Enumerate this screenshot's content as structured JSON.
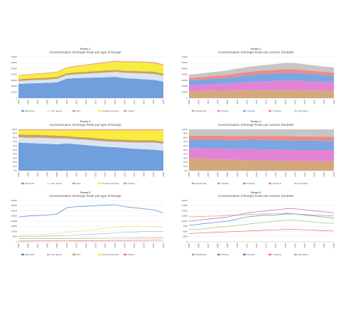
{
  "chart_data": [
    {
      "type": "area",
      "label": "Forme 1",
      "title": "Consommation d'énergie finale par type d'énergie",
      "categories": [
        "2005",
        "2006",
        "2007",
        "2008",
        "2009",
        "2010",
        "2011",
        "2012",
        "2013",
        "2014",
        "2015",
        "2016",
        "2017",
        "2018",
        "2019",
        "2020"
      ],
      "ylim": [
        0,
        70000
      ],
      "yticks": [
        0,
        10000,
        20000,
        30000,
        40000,
        50000,
        60000,
        70000
      ],
      "grid": true,
      "series": [
        {
          "name": "Électricité",
          "color": "#6f9fdc",
          "values": [
            24000,
            25000,
            25500,
            26000,
            27000,
            33000,
            34000,
            34500,
            35000,
            35500,
            36000,
            34000,
            33000,
            32000,
            31000,
            28000
          ]
        },
        {
          "name": "Gaz naturel",
          "color": "#dbe4f3",
          "values": [
            5000,
            5200,
            5400,
            5600,
            5800,
            6000,
            6500,
            7000,
            7500,
            8000,
            8500,
            9000,
            9500,
            10000,
            10200,
            10000
          ]
        },
        {
          "name": "Bois",
          "color": "#c9a35f",
          "values": [
            3000,
            3000,
            3100,
            3100,
            3200,
            3200,
            3300,
            3300,
            3400,
            3400,
            3500,
            3500,
            3600,
            3600,
            3700,
            3700
          ]
        },
        {
          "name": "Produits pétroliers",
          "color": "#f7ec3f",
          "values": [
            6000,
            6500,
            7000,
            7500,
            8000,
            9000,
            10000,
            11000,
            12000,
            13000,
            14000,
            14500,
            15000,
            15000,
            14500,
            14000
          ]
        },
        {
          "name": "Chaleur",
          "color": "#ee8f8f",
          "values": [
            800,
            800,
            900,
            900,
            1000,
            1000,
            1100,
            1100,
            1200,
            1200,
            1300,
            1300,
            1400,
            1400,
            1500,
            1500
          ]
        }
      ]
    },
    {
      "type": "area",
      "label": "Forme 2",
      "title": "Consommation d'énergie finale par secteur d'activité",
      "categories": [
        "2005",
        "2006",
        "2007",
        "2008",
        "2009",
        "2010",
        "2011",
        "2012",
        "2013",
        "2014",
        "2015",
        "2016",
        "2017",
        "2018",
        "2019",
        "2020"
      ],
      "ylim": [
        0,
        70000
      ],
      "yticks": [
        0,
        10000,
        20000,
        30000,
        40000,
        50000,
        60000,
        70000
      ],
      "grid": true,
      "series": [
        {
          "name": "Résidentiel",
          "color": "#d4a87a",
          "values": [
            12000,
            12200,
            12400,
            12500,
            12800,
            13000,
            13200,
            13400,
            13500,
            13600,
            13800,
            13500,
            13200,
            13000,
            12800,
            12500
          ]
        },
        {
          "name": "Tertiaire",
          "color": "#e383d6",
          "values": [
            10000,
            10500,
            11000,
            11500,
            12000,
            13000,
            14000,
            14500,
            15000,
            15500,
            16000,
            16000,
            15500,
            15000,
            14500,
            14000
          ]
        },
        {
          "name": "Industrie",
          "color": "#7aa7e2",
          "values": [
            8000,
            8500,
            9000,
            9500,
            10000,
            11000,
            12000,
            12500,
            13000,
            13000,
            13500,
            13500,
            13000,
            12500,
            12000,
            11500
          ]
        },
        {
          "name": "Transport",
          "color": "#f08a84",
          "values": [
            4000,
            4200,
            4400,
            4600,
            4800,
            5000,
            5200,
            5400,
            5600,
            5800,
            6000,
            6000,
            5800,
            5600,
            5400,
            5200
          ]
        },
        {
          "name": "Agriculture",
          "color": "#c6c6c6",
          "values": [
            6000,
            6000,
            6500,
            7000,
            7500,
            8000,
            8500,
            9000,
            9500,
            10000,
            10500,
            10500,
            10000,
            9500,
            9000,
            9000
          ]
        }
      ]
    },
    {
      "type": "area",
      "label": "Forme 3",
      "title": "Consommation d'énergie finale par type d'énergie",
      "categories": [
        "2005",
        "2006",
        "2007",
        "2008",
        "2009",
        "2010",
        "2011",
        "2012",
        "2013",
        "2014",
        "2015",
        "2016",
        "2017",
        "2018",
        "2019",
        "2020"
      ],
      "ylim": [
        0,
        100
      ],
      "yticks": [
        {
          "value": 0,
          "label": "0%"
        },
        {
          "value": 10,
          "label": "10%"
        },
        {
          "value": 20,
          "label": "20%"
        },
        {
          "value": 30,
          "label": "30%"
        },
        {
          "value": 40,
          "label": "40%"
        },
        {
          "value": 50,
          "label": "50%"
        },
        {
          "value": 60,
          "label": "60%"
        },
        {
          "value": 70,
          "label": "70%"
        },
        {
          "value": 80,
          "label": "80%"
        },
        {
          "value": 90,
          "label": "90%"
        },
        {
          "value": 100,
          "label": "100%"
        }
      ],
      "grid": true,
      "series": [
        {
          "name": "Électricité",
          "color": "#6f9fdc",
          "values": [
            68,
            67,
            66,
            65,
            64,
            66,
            64,
            62,
            60,
            58,
            57,
            55,
            53,
            52,
            51,
            48
          ]
        },
        {
          "name": "Gaz naturel",
          "color": "#dbe4f3",
          "values": [
            13,
            13,
            14,
            14,
            14,
            12,
            12,
            13,
            13,
            13,
            13,
            14,
            15,
            16,
            17,
            17
          ]
        },
        {
          "name": "Bois",
          "color": "#c9a35f",
          "values": [
            7,
            7,
            7,
            7,
            7,
            6,
            6,
            6,
            6,
            6,
            6,
            6,
            6,
            6,
            6,
            6
          ]
        },
        {
          "name": "Produits pétroliers",
          "color": "#f7ec3f",
          "values": [
            10,
            11,
            11,
            12,
            13,
            14,
            16,
            17,
            19,
            21,
            22,
            23,
            24,
            24,
            24,
            27
          ]
        },
        {
          "name": "Chaleur",
          "color": "#ee8f8f",
          "values": [
            2,
            2,
            2,
            2,
            2,
            2,
            2,
            2,
            2,
            2,
            2,
            2,
            2,
            2,
            2,
            2
          ]
        }
      ]
    },
    {
      "type": "area",
      "label": "Forme 4",
      "title": "Consommation d'énergie finale par secteur d'activité",
      "categories": [
        "2005",
        "2006",
        "2007",
        "2008",
        "2009",
        "2010",
        "2011",
        "2012",
        "2013",
        "2014",
        "2015",
        "2016",
        "2017",
        "2018",
        "2019",
        "2020"
      ],
      "ylim": [
        0,
        100
      ],
      "yticks": [
        {
          "value": 0,
          "label": "0%"
        },
        {
          "value": 10,
          "label": "10%"
        },
        {
          "value": 20,
          "label": "20%"
        },
        {
          "value": 30,
          "label": "30%"
        },
        {
          "value": 40,
          "label": "40%"
        },
        {
          "value": 50,
          "label": "50%"
        },
        {
          "value": 60,
          "label": "60%"
        },
        {
          "value": 70,
          "label": "70%"
        },
        {
          "value": 80,
          "label": "80%"
        },
        {
          "value": 90,
          "label": "90%"
        },
        {
          "value": 100,
          "label": "100%"
        }
      ],
      "grid": true,
      "series": [
        {
          "name": "Résidentiel",
          "color": "#d4a87a",
          "values": [
            30,
            30,
            29,
            28,
            27,
            26,
            25,
            25,
            24,
            24,
            24,
            23,
            23,
            23,
            23,
            23
          ]
        },
        {
          "name": "Tertiaire",
          "color": "#e383d6",
          "values": [
            25,
            25,
            25,
            26,
            26,
            26,
            27,
            27,
            27,
            27,
            27,
            27,
            27,
            27,
            27,
            27
          ]
        },
        {
          "name": "Industrie",
          "color": "#7aa7e2",
          "values": [
            20,
            20,
            21,
            21,
            21,
            22,
            23,
            23,
            23,
            23,
            23,
            23,
            23,
            23,
            22,
            22
          ]
        },
        {
          "name": "Transport",
          "color": "#f08a84",
          "values": [
            10,
            10,
            10,
            10,
            10,
            10,
            9,
            9,
            10,
            10,
            10,
            10,
            10,
            10,
            10,
            10
          ]
        },
        {
          "name": "Agriculture",
          "color": "#c6c6c6",
          "values": [
            15,
            15,
            15,
            15,
            16,
            16,
            16,
            16,
            16,
            16,
            16,
            17,
            17,
            17,
            18,
            18
          ]
        }
      ]
    },
    {
      "type": "line",
      "label": "Forme 5",
      "title": "Consommation d'énergie finale par type d'énergie",
      "categories": [
        "2005",
        "2006",
        "2007",
        "2008",
        "2009",
        "2010",
        "2011",
        "2012",
        "2013",
        "2014",
        "2015",
        "2016",
        "2017",
        "2018",
        "2019",
        "2020"
      ],
      "ylim": [
        0,
        40000
      ],
      "yticks": [
        0,
        5000,
        10000,
        15000,
        20000,
        25000,
        30000,
        35000,
        40000
      ],
      "grid": true,
      "series": [
        {
          "name": "Électricité",
          "color": "#4f86d1",
          "values": [
            24000,
            25000,
            25500,
            26000,
            27000,
            33000,
            34000,
            34500,
            35000,
            35500,
            36000,
            34000,
            33000,
            32000,
            31000,
            28000
          ]
        },
        {
          "name": "Gaz naturel",
          "color": "#9fbbe6",
          "values": [
            5000,
            5200,
            5400,
            5600,
            5800,
            6000,
            6500,
            7000,
            7500,
            8000,
            8500,
            9000,
            9500,
            10000,
            10200,
            10000
          ]
        },
        {
          "name": "Bois",
          "color": "#c9a35f",
          "values": [
            3000,
            3000,
            3100,
            3100,
            3200,
            3200,
            3300,
            3300,
            3400,
            3400,
            3500,
            3500,
            3600,
            3600,
            3700,
            3700
          ]
        },
        {
          "name": "Produits pétroliers",
          "color": "#f2e64a",
          "values": [
            6000,
            6500,
            7000,
            7500,
            8000,
            9000,
            10000,
            11000,
            12000,
            13000,
            14000,
            14500,
            15000,
            15000,
            14500,
            14000
          ]
        },
        {
          "name": "Chaleur",
          "color": "#e87070",
          "values": [
            800,
            800,
            900,
            900,
            1000,
            1000,
            1100,
            1100,
            1200,
            1200,
            1300,
            1300,
            1400,
            1400,
            1500,
            1500
          ]
        }
      ]
    },
    {
      "type": "line",
      "label": "Forme 6",
      "title": "Consommation d'énergie finale par secteur d'activité",
      "categories": [
        "2005",
        "2006",
        "2007",
        "2008",
        "2009",
        "2010",
        "2011",
        "2012",
        "2013",
        "2014",
        "2015",
        "2016",
        "2017",
        "2018",
        "2019",
        "2020"
      ],
      "ylim": [
        0,
        20000
      ],
      "yticks": [
        0,
        2500,
        5000,
        7500,
        10000,
        12500,
        15000,
        17500,
        20000
      ],
      "grid": true,
      "series": [
        {
          "name": "Résidentiel",
          "color": "#c9a35f",
          "values": [
            12000,
            12200,
            12400,
            12500,
            12800,
            13000,
            13200,
            13400,
            13500,
            13600,
            13800,
            13500,
            13200,
            13000,
            12800,
            12500
          ]
        },
        {
          "name": "Tertiaire",
          "color": "#c65bc0",
          "values": [
            10000,
            10500,
            11000,
            11500,
            12000,
            13000,
            14000,
            14500,
            15000,
            15500,
            16000,
            16000,
            15500,
            15000,
            14500,
            14000
          ]
        },
        {
          "name": "Industrie",
          "color": "#4f86d1",
          "values": [
            8000,
            8500,
            9000,
            9500,
            10000,
            11000,
            12000,
            12500,
            13000,
            13000,
            13500,
            13500,
            13000,
            12500,
            12000,
            11500
          ]
        },
        {
          "name": "Transport",
          "color": "#e87070",
          "values": [
            4000,
            4200,
            4400,
            4600,
            4800,
            5000,
            5200,
            5400,
            5600,
            5800,
            6000,
            6000,
            5800,
            5600,
            5400,
            5200
          ]
        },
        {
          "name": "Agriculture",
          "color": "#9fc46a",
          "values": [
            6000,
            6000,
            6500,
            7000,
            7500,
            8000,
            8500,
            9000,
            9500,
            10000,
            10500,
            10500,
            10000,
            9500,
            9000,
            9000
          ]
        }
      ]
    }
  ]
}
